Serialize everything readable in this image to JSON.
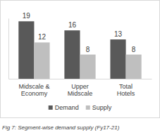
{
  "chart_data": {
    "type": "bar",
    "title": "Fig 7: Segment-wise demand supply (Fy17-21)",
    "categories": [
      "Midscale & Economy",
      "Upper Midscale",
      "Total Hotels"
    ],
    "series": [
      {
        "name": "Demand",
        "color": "#595959",
        "values": [
          19,
          16,
          13
        ]
      },
      {
        "name": "Supply",
        "color": "#bfbfbf",
        "values": [
          12,
          8,
          8
        ]
      }
    ],
    "ylim": [
      0,
      20
    ],
    "grid": false,
    "legend": "bottom",
    "data_labels": true,
    "tick_labels": "x"
  }
}
